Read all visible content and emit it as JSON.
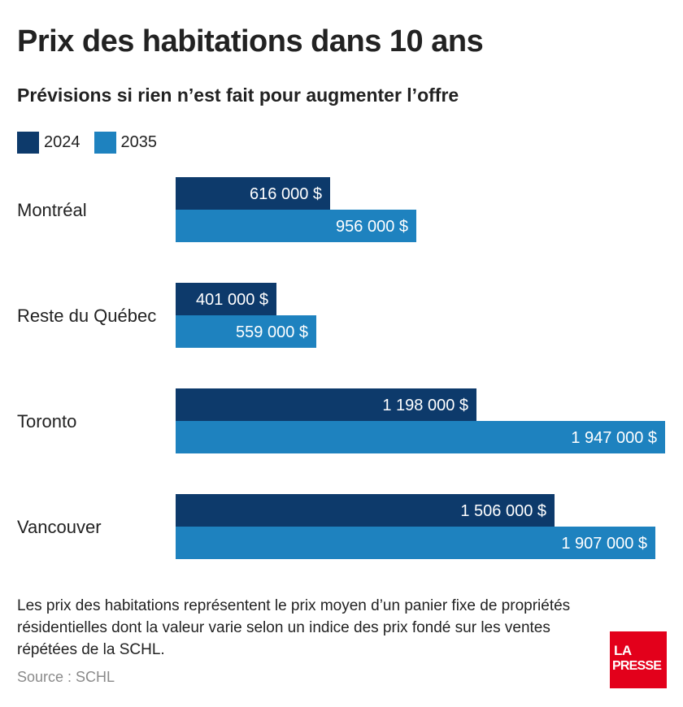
{
  "header": {
    "title": "Prix des habitations dans 10 ans",
    "subtitle": "Prévisions si rien n’est fait pour augmenter l’offre"
  },
  "legend": [
    {
      "label": "2024",
      "color": "#0d3a6b"
    },
    {
      "label": "2035",
      "color": "#1e82bf"
    }
  ],
  "chart_data": {
    "type": "bar",
    "orientation": "horizontal",
    "title": "Prix des habitations dans 10 ans",
    "subtitle": "Prévisions si rien n’est fait pour augmenter l’offre",
    "categories": [
      "Montréal",
      "Reste du Québec",
      "Toronto",
      "Vancouver"
    ],
    "series": [
      {
        "name": "2024",
        "color": "#0d3a6b",
        "values": [
          616000,
          401000,
          1198000,
          1506000
        ],
        "labels": [
          "616 000 $",
          "401 000 $",
          "1 198 000 $",
          "1 506 000 $"
        ]
      },
      {
        "name": "2035",
        "color": "#1e82bf",
        "values": [
          956000,
          559000,
          1947000,
          1907000
        ],
        "labels": [
          "956 000 $",
          "559 000 $",
          "1 947 000 $",
          "1 907 000 $"
        ]
      }
    ],
    "xlim": [
      0,
      1947000
    ],
    "grid": false,
    "legend_position": "top-left"
  },
  "footer": {
    "note": "Les prix des habitations représentent le prix moyen d’un panier fixe de propriétés résidentielles dont la valeur varie selon un indice des prix fondé sur les ventes répétées de la SCHL.",
    "source": "Source : SCHL",
    "logo_line1": "LA",
    "logo_line2": "PRESSE"
  }
}
